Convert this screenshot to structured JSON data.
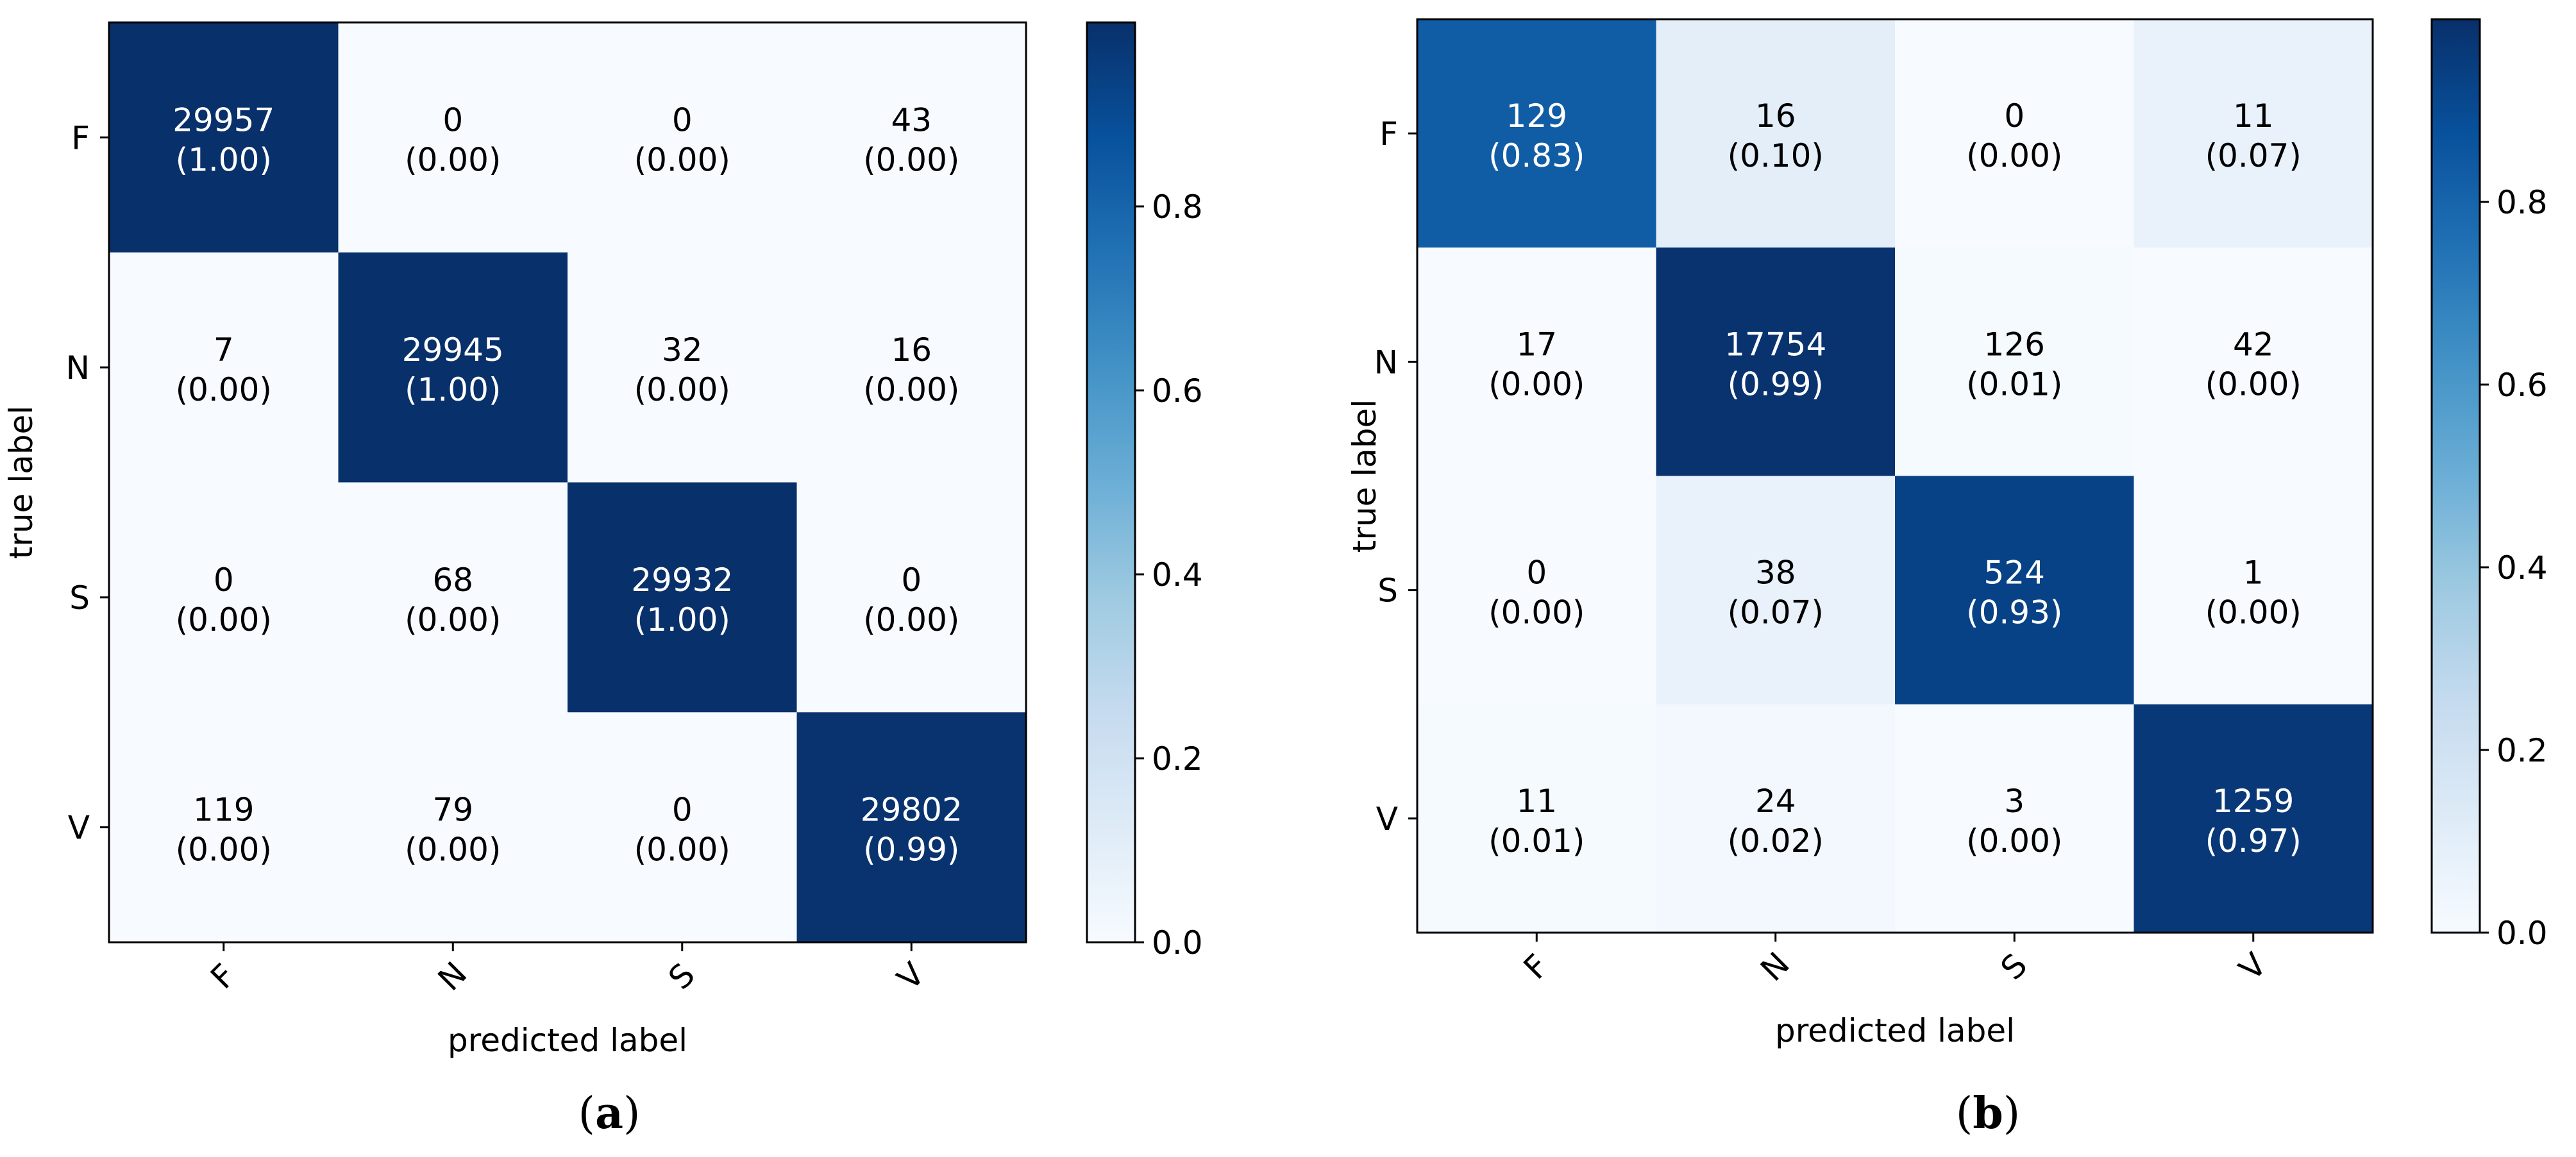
{
  "chart_data": [
    {
      "type": "heatmap",
      "panel_label": "a",
      "title": "",
      "xlabel": "predicted label",
      "ylabel": "true label",
      "categories": [
        "F",
        "N",
        "S",
        "V"
      ],
      "counts": [
        [
          29957,
          0,
          0,
          43
        ],
        [
          7,
          29945,
          32,
          16
        ],
        [
          0,
          68,
          29932,
          0
        ],
        [
          119,
          79,
          0,
          29802
        ]
      ],
      "ratios": [
        [
          1.0,
          0.0,
          0.0,
          0.0
        ],
        [
          0.0,
          1.0,
          0.0,
          0.0
        ],
        [
          0.0,
          0.0,
          1.0,
          0.0
        ],
        [
          0.0,
          0.0,
          0.0,
          0.99
        ]
      ],
      "colorbar": {
        "range": [
          0,
          1
        ],
        "ticks": [
          0.0,
          0.2,
          0.4,
          0.6,
          0.8
        ],
        "cmap": "Blues"
      }
    },
    {
      "type": "heatmap",
      "panel_label": "b",
      "title": "",
      "xlabel": "predicted label",
      "ylabel": "true label",
      "categories": [
        "F",
        "N",
        "S",
        "V"
      ],
      "counts": [
        [
          129,
          16,
          0,
          11
        ],
        [
          17,
          17754,
          126,
          42
        ],
        [
          0,
          38,
          524,
          1
        ],
        [
          11,
          24,
          3,
          1259
        ]
      ],
      "ratios": [
        [
          0.83,
          0.1,
          0.0,
          0.07
        ],
        [
          0.0,
          0.99,
          0.01,
          0.0
        ],
        [
          0.0,
          0.07,
          0.93,
          0.0
        ],
        [
          0.01,
          0.02,
          0.0,
          0.97
        ]
      ],
      "colorbar": {
        "range": [
          0,
          1
        ],
        "ticks": [
          0.0,
          0.2,
          0.4,
          0.6,
          0.8
        ],
        "cmap": "Blues"
      }
    }
  ],
  "colors": {
    "cmap_stops": [
      "#f7fbff",
      "#deebf7",
      "#c6dbef",
      "#9ecae1",
      "#6baed6",
      "#4292c6",
      "#2171b5",
      "#08519c",
      "#08306b"
    ],
    "axis": "#000000",
    "dark_text": "#000000",
    "light_text": "#ffffff"
  }
}
